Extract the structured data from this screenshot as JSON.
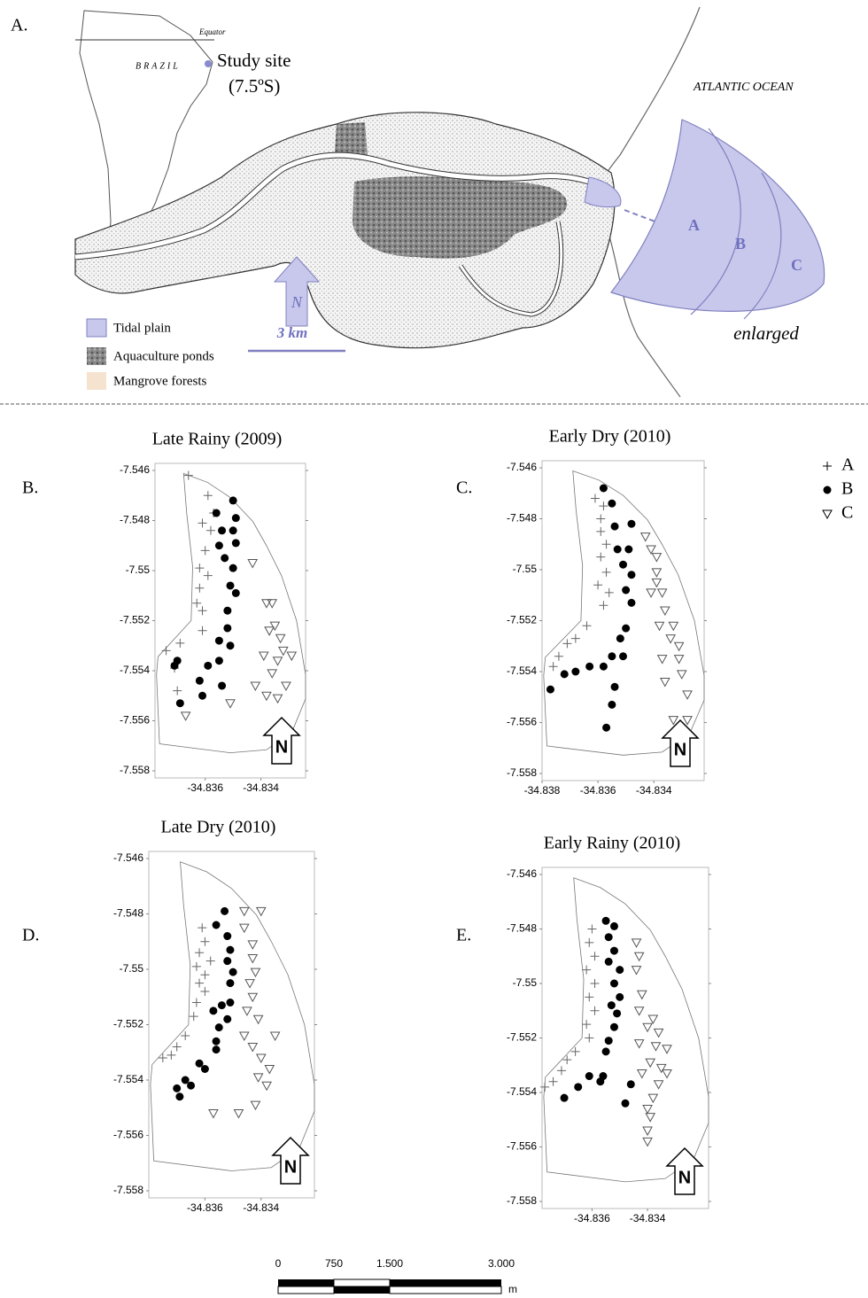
{
  "map": {
    "panel_label": "A.",
    "equator": "Equator",
    "country": "BRAZIL",
    "site": "Study site",
    "latitude": "(7.5ºS)",
    "ocean": "ATLANTIC OCEAN",
    "zones": [
      "A",
      "B",
      "C"
    ],
    "enlarged": "enlarged",
    "north": "N",
    "scale": "3 km",
    "legend": [
      "Tidal plain",
      "Aquaculture ponds",
      "Mangrove forests"
    ]
  },
  "scale_bar": {
    "labels": [
      "0",
      "750",
      "1.500",
      "3.000"
    ],
    "unit": "m"
  },
  "chart_data": [
    {
      "type": "scatter",
      "title": "Late Rainy (2009)",
      "panel_label": "B.",
      "north_label": "N",
      "xlim": [
        -34.8378,
        -34.8324
      ],
      "ylim": [
        -7.558,
        -7.546
      ],
      "xticks": [
        -34.836,
        -34.834
      ],
      "yticks": [
        -7.546,
        -7.548,
        -7.55,
        -7.552,
        -7.554,
        -7.556,
        -7.558
      ],
      "series": [
        {
          "name": "A",
          "marker": "plus",
          "color": "#666666",
          "x": [
            -34.8366,
            -34.8359,
            -34.8357,
            -34.8361,
            -34.8358,
            -34.836,
            -34.8362,
            -34.8359,
            -34.8362,
            -34.8363,
            -34.8361,
            -34.8361,
            -34.8369,
            -34.8374,
            -34.8371,
            -34.837
          ],
          "values": [
            -7.5462,
            -7.547,
            -7.5477,
            -7.5481,
            -7.5484,
            -7.5492,
            -7.5499,
            -7.5502,
            -7.5507,
            -7.5513,
            -7.5516,
            -7.5524,
            -7.5529,
            -7.5532,
            -7.5539,
            -7.5548
          ]
        },
        {
          "name": "B",
          "marker": "dot",
          "color": "#000000",
          "x": [
            -34.835,
            -34.8356,
            -34.8349,
            -34.8354,
            -34.835,
            -34.8355,
            -34.8349,
            -34.8353,
            -34.835,
            -34.8351,
            -34.8349,
            -34.8352,
            -34.8352,
            -34.8355,
            -34.8351,
            -34.8355,
            -34.8359,
            -34.837,
            -34.8371,
            -34.8362,
            -34.8354,
            -34.8361,
            -34.8369
          ],
          "values": [
            -7.5472,
            -7.5477,
            -7.5479,
            -7.5484,
            -7.5484,
            -7.549,
            -7.5489,
            -7.5495,
            -7.5499,
            -7.5506,
            -7.5509,
            -7.5516,
            -7.5523,
            -7.5528,
            -7.553,
            -7.5536,
            -7.5538,
            -7.5536,
            -7.5538,
            -7.5544,
            -7.5546,
            -7.555,
            -7.5553
          ]
        },
        {
          "name": "C",
          "marker": "triangle",
          "color": "#555555",
          "x": [
            -34.8343,
            -34.8338,
            -34.8336,
            -34.8335,
            -34.8333,
            -34.8337,
            -34.8332,
            -34.8339,
            -34.8334,
            -34.8329,
            -34.8336,
            -34.8331,
            -34.8342,
            -34.8338,
            -34.8334,
            -34.8351,
            -34.8367
          ],
          "values": [
            -7.5497,
            -7.5513,
            -7.5513,
            -7.5522,
            -7.5527,
            -7.5524,
            -7.5532,
            -7.5534,
            -7.5536,
            -7.5534,
            -7.5541,
            -7.5546,
            -7.5546,
            -7.555,
            -7.5551,
            -7.5553,
            -7.5558
          ]
        }
      ]
    },
    {
      "type": "scatter",
      "title": "Early Dry (2010)",
      "panel_label": "C.",
      "north_label": "N",
      "xlim": [
        -34.838,
        -34.8322
      ],
      "ylim": [
        -7.558,
        -7.546
      ],
      "xticks": [
        -34.838,
        -34.836,
        -34.834
      ],
      "yticks": [
        -7.546,
        -7.548,
        -7.55,
        -7.552,
        -7.554,
        -7.556,
        -7.558
      ],
      "series": [
        {
          "name": "A",
          "marker": "plus",
          "color": "#666666",
          "x": [
            -34.8361,
            -34.8358,
            -34.8359,
            -34.8359,
            -34.8357,
            -34.8359,
            -34.8357,
            -34.836,
            -34.8356,
            -34.8358,
            -34.8364,
            -34.8368,
            -34.8371,
            -34.8374,
            -34.8376
          ],
          "values": [
            -7.5472,
            -7.5475,
            -7.548,
            -7.5485,
            -7.549,
            -7.5495,
            -7.5501,
            -7.5506,
            -7.5509,
            -7.5514,
            -7.5522,
            -7.5527,
            -7.5529,
            -7.5534,
            -7.5538
          ]
        },
        {
          "name": "B",
          "marker": "dot",
          "color": "#000000",
          "x": [
            -34.8358,
            -34.8355,
            -34.8354,
            -34.8348,
            -34.8353,
            -34.8349,
            -34.8351,
            -34.8348,
            -34.835,
            -34.8348,
            -34.835,
            -34.8352,
            -34.8351,
            -34.8355,
            -34.8358,
            -34.8363,
            -34.8368,
            -34.8372,
            -34.8377,
            -34.8354,
            -34.8355,
            -34.8357
          ],
          "values": [
            -7.5468,
            -7.5474,
            -7.5483,
            -7.5482,
            -7.5492,
            -7.5492,
            -7.5498,
            -7.5502,
            -7.5508,
            -7.5513,
            -7.5523,
            -7.5527,
            -7.5534,
            -7.5534,
            -7.5538,
            -7.5538,
            -7.554,
            -7.5541,
            -7.5547,
            -7.5546,
            -7.5553,
            -7.5562
          ]
        },
        {
          "name": "C",
          "marker": "triangle",
          "color": "#555555",
          "x": [
            -34.8343,
            -34.8341,
            -34.8339,
            -34.8339,
            -34.8339,
            -34.8341,
            -34.8337,
            -34.8336,
            -34.8338,
            -34.8333,
            -34.8334,
            -34.8331,
            -34.8331,
            -34.8337,
            -34.833,
            -34.8336,
            -34.8328,
            -34.8333,
            -34.8328
          ],
          "values": [
            -7.5487,
            -7.5492,
            -7.5495,
            -7.5501,
            -7.5505,
            -7.5509,
            -7.5509,
            -7.5516,
            -7.5522,
            -7.5522,
            -7.5527,
            -7.553,
            -7.5535,
            -7.5535,
            -7.5541,
            -7.5544,
            -7.5549,
            -7.5559,
            -7.5559
          ]
        }
      ]
    },
    {
      "type": "scatter",
      "title": "Late Dry (2010)",
      "panel_label": "D.",
      "north_label": "N",
      "xlim": [
        -34.838,
        -34.8321
      ],
      "ylim": [
        -7.558,
        -7.546
      ],
      "xticks": [
        -34.836,
        -34.834
      ],
      "yticks": [
        -7.546,
        -7.548,
        -7.55,
        -7.552,
        -7.554,
        -7.556,
        -7.558
      ],
      "series": [
        {
          "name": "A",
          "marker": "plus",
          "color": "#666666",
          "x": [
            -34.8361,
            -34.836,
            -34.8362,
            -34.8358,
            -34.8363,
            -34.836,
            -34.8362,
            -34.836,
            -34.8363,
            -34.8364,
            -34.8367,
            -34.837,
            -34.8372,
            -34.8375
          ],
          "values": [
            -7.5485,
            -7.549,
            -7.5494,
            -7.5497,
            -7.5499,
            -7.5502,
            -7.5505,
            -7.5508,
            -7.5512,
            -7.5517,
            -7.5524,
            -7.5528,
            -7.5531,
            -7.5532
          ]
        },
        {
          "name": "B",
          "marker": "dot",
          "color": "#000000",
          "x": [
            -34.8353,
            -34.8356,
            -34.8352,
            -34.8351,
            -34.8352,
            -34.835,
            -34.8351,
            -34.8351,
            -34.8354,
            -34.8357,
            -34.8352,
            -34.8355,
            -34.8356,
            -34.8356,
            -34.8362,
            -34.836,
            -34.8367,
            -34.8365,
            -34.837,
            -34.8369
          ],
          "values": [
            -7.5479,
            -7.5484,
            -7.5488,
            -7.5493,
            -7.5497,
            -7.5501,
            -7.5505,
            -7.5512,
            -7.5513,
            -7.5515,
            -7.5518,
            -7.5521,
            -7.5526,
            -7.5529,
            -7.5534,
            -7.5536,
            -7.554,
            -7.5542,
            -7.5543,
            -7.5546
          ]
        },
        {
          "name": "C",
          "marker": "triangle",
          "color": "#555555",
          "x": [
            -34.8346,
            -34.834,
            -34.8346,
            -34.8343,
            -34.8343,
            -34.8342,
            -34.8344,
            -34.8343,
            -34.8345,
            -34.8341,
            -34.8346,
            -34.8335,
            -34.8343,
            -34.834,
            -34.8337,
            -34.8341,
            -34.8338,
            -34.8342,
            -34.8348,
            -34.8357
          ],
          "values": [
            -7.5479,
            -7.5479,
            -7.5485,
            -7.5491,
            -7.5496,
            -7.5501,
            -7.5505,
            -7.551,
            -7.5515,
            -7.5518,
            -7.5524,
            -7.5524,
            -7.5528,
            -7.5532,
            -7.5536,
            -7.5539,
            -7.5542,
            -7.5549,
            -7.5552,
            -7.5552
          ]
        }
      ]
    },
    {
      "type": "scatter",
      "title": "Early Rainy (2010)",
      "panel_label": "E.",
      "north_label": "N",
      "xlim": [
        -34.8378,
        -34.8318
      ],
      "ylim": [
        -7.558,
        -7.546
      ],
      "xticks": [
        -34.836,
        -34.834
      ],
      "yticks": [
        -7.546,
        -7.548,
        -7.55,
        -7.552,
        -7.554,
        -7.556,
        -7.558
      ],
      "series": [
        {
          "name": "A",
          "marker": "plus",
          "color": "#666666",
          "x": [
            -34.836,
            -34.8361,
            -34.8359,
            -34.8362,
            -34.8359,
            -34.8361,
            -34.8359,
            -34.8362,
            -34.8361,
            -34.8366,
            -34.8369,
            -34.8371,
            -34.8374,
            -34.8377
          ],
          "values": [
            -7.548,
            -7.5485,
            -7.549,
            -7.5495,
            -7.55,
            -7.5505,
            -7.551,
            -7.5515,
            -7.552,
            -7.5525,
            -7.5528,
            -7.5532,
            -7.5536,
            -7.5538
          ]
        },
        {
          "name": "B",
          "marker": "dot",
          "color": "#000000",
          "x": [
            -34.8355,
            -34.8352,
            -34.8354,
            -34.8352,
            -34.8354,
            -34.835,
            -34.8352,
            -34.835,
            -34.8353,
            -34.8351,
            -34.8352,
            -34.8354,
            -34.8355,
            -34.8356,
            -34.8361,
            -34.8357,
            -34.8365,
            -34.837,
            -34.8346,
            -34.8348
          ],
          "values": [
            -7.5477,
            -7.5479,
            -7.5483,
            -7.5488,
            -7.5492,
            -7.5495,
            -7.55,
            -7.5505,
            -7.5508,
            -7.5511,
            -7.5516,
            -7.5521,
            -7.5525,
            -7.5534,
            -7.5534,
            -7.5536,
            -7.5538,
            -7.5542,
            -7.5537,
            -7.5544
          ]
        },
        {
          "name": "C",
          "marker": "triangle",
          "color": "#555555",
          "x": [
            -34.8344,
            -34.8343,
            -34.8344,
            -34.8342,
            -34.8343,
            -34.8338,
            -34.834,
            -34.8336,
            -34.8343,
            -34.8337,
            -34.8333,
            -34.8339,
            -34.8335,
            -34.8342,
            -34.8333,
            -34.8336,
            -34.8338,
            -34.834,
            -34.8339,
            -34.834,
            -34.834
          ],
          "values": [
            -7.5485,
            -7.549,
            -7.5495,
            -7.5504,
            -7.551,
            -7.5513,
            -7.5516,
            -7.5518,
            -7.5522,
            -7.5523,
            -7.5524,
            -7.5529,
            -7.5531,
            -7.5533,
            -7.5533,
            -7.5537,
            -7.5542,
            -7.5546,
            -7.5549,
            -7.5554,
            -7.5558
          ]
        }
      ]
    }
  ]
}
